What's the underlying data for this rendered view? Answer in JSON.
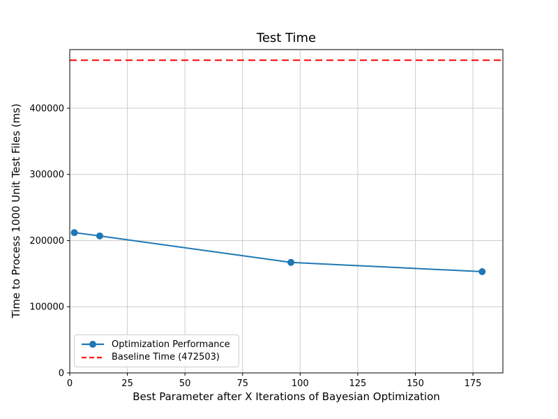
{
  "figure": {
    "background": "#ffffff"
  },
  "chart_data": {
    "type": "line",
    "title": "Test Time",
    "xlabel": "Best Parameter after X Iterations of Bayesian Optimization",
    "ylabel": "Time to Process 1000 Unit Test Files (ms)",
    "xlim": [
      0,
      188
    ],
    "ylim": [
      0,
      488600
    ],
    "xticks": [
      0,
      25,
      50,
      75,
      100,
      125,
      150,
      175
    ],
    "yticks": [
      0,
      100000,
      200000,
      300000,
      400000
    ],
    "grid": true,
    "grid_color": "#cccccc",
    "axes_color": "#000000",
    "legend_position": "lower left",
    "series": [
      {
        "name": "Optimization Performance",
        "type": "line",
        "marker": "circle",
        "color": "#1f77b4",
        "points": [
          [
            2,
            212000
          ],
          [
            13,
            207000
          ],
          [
            96,
            167000
          ],
          [
            179,
            153000
          ]
        ]
      },
      {
        "name": "Baseline Time (472503)",
        "type": "hline",
        "style": "dashed",
        "color": "#ff0000",
        "value": 472503
      }
    ]
  }
}
